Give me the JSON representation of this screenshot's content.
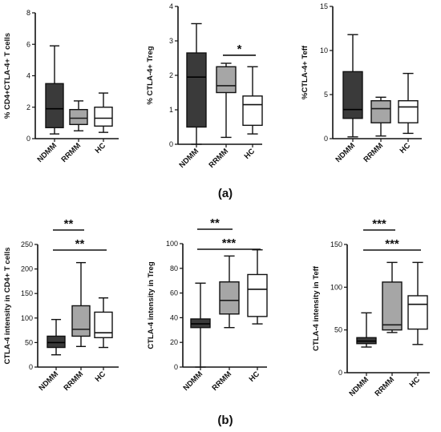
{
  "panel_labels": [
    "(a)",
    "(b)"
  ],
  "colors": {
    "NDMM": "#3a3a3a",
    "RRMM": "#a6a6a6",
    "HC": "#ffffff",
    "stroke": "#111111"
  },
  "chart_data": [
    {
      "type": "box",
      "panel": "(a)",
      "categories": [
        "NDMM",
        "RRMM",
        "HC"
      ],
      "ylabel": "% CD4+CTLA-4+ T cells",
      "ylim": [
        0,
        8
      ],
      "yticks": [
        0,
        2,
        4,
        6,
        8
      ],
      "boxes": [
        {
          "min": 0.3,
          "q1": 0.7,
          "median": 1.9,
          "q3": 3.5,
          "max": 5.9
        },
        {
          "min": 0.5,
          "q1": 0.9,
          "median": 1.3,
          "q3": 1.85,
          "max": 2.4
        },
        {
          "min": 0.4,
          "q1": 0.8,
          "median": 1.3,
          "q3": 2.0,
          "max": 2.9
        }
      ],
      "significance": []
    },
    {
      "type": "box",
      "panel": "(a)",
      "categories": [
        "NDMM",
        "RRMM",
        "HC"
      ],
      "ylabel": "% CTLA-4+ Treg",
      "ylim": [
        0,
        4
      ],
      "yticks": [
        0,
        1,
        2,
        3,
        4
      ],
      "boxes": [
        {
          "min": 0.0,
          "q1": 0.5,
          "median": 1.95,
          "q3": 2.65,
          "max": 3.5
        },
        {
          "min": 0.2,
          "q1": 1.5,
          "median": 1.7,
          "q3": 2.25,
          "max": 2.35
        },
        {
          "min": 0.3,
          "q1": 0.55,
          "median": 1.15,
          "q3": 1.4,
          "max": 2.25
        }
      ],
      "significance": [
        {
          "from": 1,
          "to": 2,
          "label": "*"
        }
      ]
    },
    {
      "type": "box",
      "panel": "(a)",
      "categories": [
        "NDMM",
        "RRMM",
        "HC"
      ],
      "ylabel": "%CTLA-4+ Teff",
      "ylim": [
        0,
        15
      ],
      "yticks": [
        0,
        5,
        10,
        15
      ],
      "boxes": [
        {
          "min": 0.2,
          "q1": 2.3,
          "median": 3.3,
          "q3": 7.6,
          "max": 11.8
        },
        {
          "min": 0.3,
          "q1": 1.8,
          "median": 3.4,
          "q3": 4.3,
          "max": 4.7
        },
        {
          "min": 0.6,
          "q1": 1.8,
          "median": 3.6,
          "q3": 4.3,
          "max": 7.4
        }
      ],
      "significance": []
    },
    {
      "type": "box",
      "panel": "(b)",
      "categories": [
        "NDMM",
        "RRMM",
        "HC"
      ],
      "ylabel": "CTLA-4 intensity in CD4+ T cells",
      "ylim": [
        0,
        250
      ],
      "yticks": [
        0,
        50,
        100,
        150,
        200,
        250
      ],
      "boxes": [
        {
          "min": 25,
          "q1": 40,
          "median": 50,
          "q3": 63,
          "max": 97
        },
        {
          "min": 42,
          "q1": 63,
          "median": 77,
          "q3": 125,
          "max": 213
        },
        {
          "min": 40,
          "q1": 60,
          "median": 70,
          "q3": 112,
          "max": 141
        }
      ],
      "significance": [
        {
          "from": 0,
          "to": 1,
          "label": "**"
        },
        {
          "from": 0,
          "to": 2,
          "label": "**"
        }
      ]
    },
    {
      "type": "box",
      "panel": "(b)",
      "categories": [
        "NDMM",
        "RRMM",
        "HC"
      ],
      "ylabel": "CTLA-4 intensity in Treg",
      "ylim": [
        0,
        100
      ],
      "yticks": [
        0,
        20,
        40,
        60,
        80,
        100
      ],
      "boxes": [
        {
          "min": 0,
          "q1": 32,
          "median": 35,
          "q3": 39,
          "max": 68
        },
        {
          "min": 32,
          "q1": 43,
          "median": 54,
          "q3": 69,
          "max": 90
        },
        {
          "min": 35,
          "q1": 41,
          "median": 63,
          "q3": 75,
          "max": 95
        }
      ],
      "significance": [
        {
          "from": 0,
          "to": 1,
          "label": "**"
        },
        {
          "from": 0,
          "to": 2,
          "label": "***"
        }
      ]
    },
    {
      "type": "box",
      "panel": "(b)",
      "categories": [
        "NDMM",
        "RRMM",
        "HC"
      ],
      "ylabel": "CTLA-4 intensity in Teff",
      "ylim": [
        0,
        150
      ],
      "yticks": [
        0,
        50,
        100,
        150
      ],
      "boxes": [
        {
          "min": 30,
          "q1": 34,
          "median": 37,
          "q3": 41,
          "max": 70
        },
        {
          "min": 47,
          "q1": 50,
          "median": 56,
          "q3": 106,
          "max": 129
        },
        {
          "min": 33,
          "q1": 51,
          "median": 80,
          "q3": 90,
          "max": 129
        }
      ],
      "significance": [
        {
          "from": 0,
          "to": 1,
          "label": "***"
        },
        {
          "from": 0,
          "to": 2,
          "label": "***"
        }
      ]
    }
  ]
}
